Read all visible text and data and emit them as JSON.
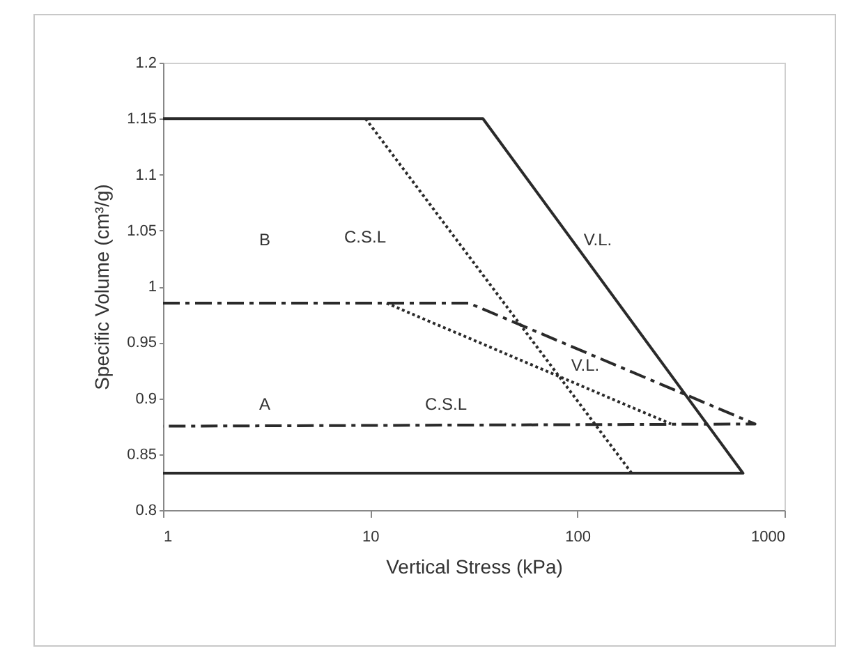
{
  "chart_data": {
    "type": "line",
    "xlabel": "Vertical Stress (kPa)",
    "ylabel": "Specific Volume (cm³/g)",
    "log": "x",
    "grid": false,
    "marker": "none",
    "xlim": [
      1,
      1000
    ],
    "xticks": [
      1,
      10,
      100,
      1000
    ],
    "ylim": [
      0.8,
      1.2
    ],
    "yticks": [
      0.8,
      0.85,
      0.9,
      0.95,
      1,
      1.05,
      1.1,
      1.15,
      1.2
    ],
    "series": [
      {
        "color": "#2a2a2a",
        "line_style": "solid",
        "x": [
          1,
          35,
          630,
          1
        ],
        "values": [
          1.15,
          1.15,
          0.833,
          0.833
        ]
      },
      {
        "color": "#2a2a2a",
        "line_style": "dotted",
        "x": [
          9.5,
          183
        ],
        "values": [
          1.15,
          0.833
        ]
      },
      {
        "color": "#2a2a2a",
        "line_style": "dashdot",
        "x": [
          1,
          30,
          720,
          1
        ],
        "values": [
          0.985,
          0.985,
          0.877,
          0.875
        ]
      },
      {
        "color": "#2a2a2a",
        "line_style": "dotted",
        "x": [
          12,
          283
        ],
        "values": [
          0.985,
          0.877
        ]
      }
    ],
    "annotations": [
      "B",
      "C.S.L",
      "V.L.",
      "A",
      "C.S.L",
      "V.L."
    ]
  }
}
